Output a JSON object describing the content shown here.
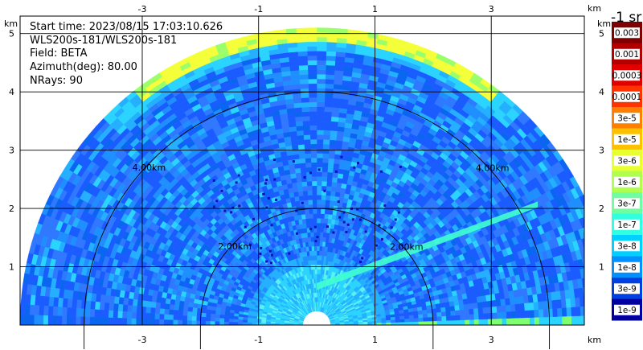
{
  "header": {
    "start_time": "Start time: 2023/08/15 17:03:10.626",
    "instrument": "WLS200s-181/WLS200s-181",
    "field": "Field: BETA",
    "azimuth": "Azimuth(deg): 80.00",
    "nrays": "NRays: 90"
  },
  "chart_data": {
    "type": "heatmap",
    "projection": "RHI range-height half-disc",
    "x_axis": {
      "unit": "km",
      "ticks": [
        "-3",
        "-1",
        "1",
        "3"
      ],
      "range": [
        -5.1,
        4.6
      ]
    },
    "y_axis": {
      "unit": "km",
      "ticks": [
        "1",
        "2",
        "3",
        "4",
        "5"
      ],
      "range": [
        0,
        5.3
      ]
    },
    "grid": true,
    "max_range_km": 5.1,
    "range_rings": [
      {
        "radius_km": 2.0,
        "label": "2.00km"
      },
      {
        "radius_km": 4.0,
        "label": "4.00km"
      }
    ],
    "colorbar": {
      "title": "-1 sr",
      "labels": [
        "0.003",
        "0.001",
        "0.0003",
        "0.0001",
        "3e-5",
        "1e-5",
        "3e-6",
        "1e-6",
        "3e-7",
        "1e-7",
        "3e-8",
        "1e-8",
        "3e-9",
        "1e-9"
      ],
      "colors": [
        "#7f0000",
        "#b00000",
        "#e00000",
        "#ff3300",
        "#ff8000",
        "#ffc000",
        "#e8ff30",
        "#b0ff50",
        "#70ffa0",
        "#30ffe0",
        "#00d0ff",
        "#0090ff",
        "#0040e0",
        "#0000a0"
      ]
    },
    "dominant_value_band": [
      "1e-8",
      "3e-8"
    ],
    "near_range_ring_km": 1.0,
    "features": [
      {
        "description": "aerosol layer near top",
        "value": "1e-5"
      },
      {
        "description": "inclined feature",
        "value": "1e-7"
      }
    ]
  }
}
